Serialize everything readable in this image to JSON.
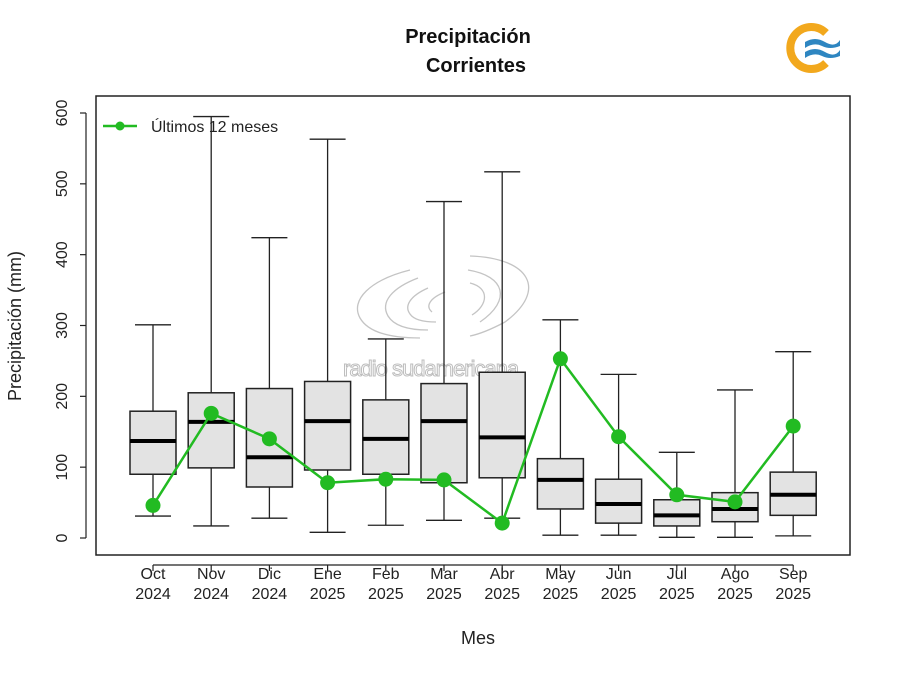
{
  "chart_data": {
    "type": "boxplot",
    "title": "Precipitación",
    "subtitle": "Corrientes",
    "xlabel": "Mes",
    "ylabel": "Precipitación (mm)",
    "ylim": [
      0,
      600
    ],
    "yticks": [
      0,
      100,
      200,
      300,
      400,
      500,
      600
    ],
    "grid": false,
    "legend": {
      "position": "top-left",
      "entries": [
        {
          "label": "Últimos 12 meses",
          "color": "#22bb22",
          "marker": "circle-line"
        }
      ]
    },
    "categories": [
      {
        "month": "Oct",
        "year": "2024"
      },
      {
        "month": "Nov",
        "year": "2024"
      },
      {
        "month": "Dic",
        "year": "2024"
      },
      {
        "month": "Ene",
        "year": "2025"
      },
      {
        "month": "Feb",
        "year": "2025"
      },
      {
        "month": "Mar",
        "year": "2025"
      },
      {
        "month": "Abr",
        "year": "2025"
      },
      {
        "month": "May",
        "year": "2025"
      },
      {
        "month": "Jun",
        "year": "2025"
      },
      {
        "month": "Jul",
        "year": "2025"
      },
      {
        "month": "Ago",
        "year": "2025"
      },
      {
        "month": "Sep",
        "year": "2025"
      }
    ],
    "boxes": [
      {
        "min": 31,
        "q1": 90,
        "median": 137,
        "q3": 179,
        "max": 301
      },
      {
        "min": 17,
        "q1": 99,
        "median": 164,
        "q3": 205,
        "max": 595
      },
      {
        "min": 28,
        "q1": 72,
        "median": 114,
        "q3": 211,
        "max": 424
      },
      {
        "min": 8,
        "q1": 96,
        "median": 165,
        "q3": 221,
        "max": 563
      },
      {
        "min": 18,
        "q1": 90,
        "median": 140,
        "q3": 195,
        "max": 281
      },
      {
        "min": 25,
        "q1": 78,
        "median": 165,
        "q3": 218,
        "max": 475
      },
      {
        "min": 28,
        "q1": 85,
        "median": 142,
        "q3": 234,
        "max": 517
      },
      {
        "min": 4,
        "q1": 41,
        "median": 82,
        "q3": 112,
        "max": 308
      },
      {
        "min": 4,
        "q1": 21,
        "median": 48,
        "q3": 83,
        "max": 231
      },
      {
        "min": 1,
        "q1": 17,
        "median": 32,
        "q3": 54,
        "max": 121
      },
      {
        "min": 1,
        "q1": 23,
        "median": 41,
        "q3": 64,
        "max": 209
      },
      {
        "min": 3,
        "q1": 32,
        "median": 61,
        "q3": 93,
        "max": 263
      }
    ],
    "series": [
      {
        "name": "Últimos 12 meses",
        "color": "#22bb22",
        "values": [
          46,
          176,
          140,
          78,
          83,
          82,
          21,
          253,
          143,
          61,
          51,
          158
        ]
      }
    ],
    "box_fill": "#e3e3e3"
  },
  "watermark": {
    "text": "radio sudamericana"
  },
  "logo": {
    "name": "institutional-logo",
    "ring_color": "#f2a81d",
    "wave_color": "#2e86c1"
  }
}
